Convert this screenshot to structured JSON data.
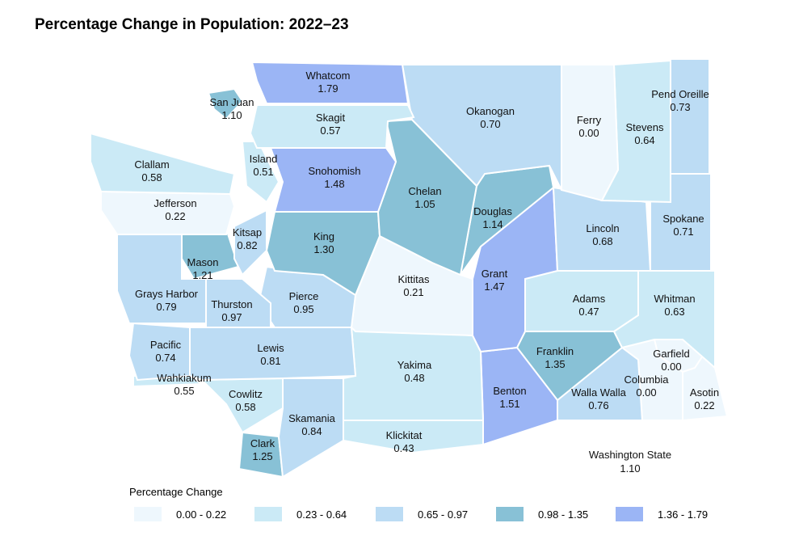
{
  "title": "Percentage Change in Population:  2022–23",
  "state": {
    "label": "Washington State",
    "value": "1.10"
  },
  "legend": {
    "title": "Percentage Change",
    "bins": [
      {
        "label": "0.00 - 0.22",
        "color": "#eef7fd"
      },
      {
        "label": "0.23 - 0.64",
        "color": "#cbeaf6"
      },
      {
        "label": "0.65 - 0.97",
        "color": "#bcdcf4"
      },
      {
        "label": "0.98 - 1.35",
        "color": "#88c1d6"
      },
      {
        "label": "1.36 - 1.79",
        "color": "#9bb5f5"
      }
    ]
  },
  "counties": [
    {
      "name": "Whatcom",
      "value": "1.79",
      "bin": 4
    },
    {
      "name": "San Juan",
      "value": "1.10",
      "bin": 3
    },
    {
      "name": "Skagit",
      "value": "0.57",
      "bin": 1
    },
    {
      "name": "Clallam",
      "value": "0.58",
      "bin": 1
    },
    {
      "name": "Jefferson",
      "value": "0.22",
      "bin": 0
    },
    {
      "name": "Island",
      "value": "0.51",
      "bin": 1
    },
    {
      "name": "Snohomish",
      "value": "1.48",
      "bin": 4
    },
    {
      "name": "Okanogan",
      "value": "0.70",
      "bin": 2
    },
    {
      "name": "Ferry",
      "value": "0.00",
      "bin": 0
    },
    {
      "name": "Stevens",
      "value": "0.64",
      "bin": 1
    },
    {
      "name": "Pend Oreille",
      "value": "0.73",
      "bin": 2
    },
    {
      "name": "Chelan",
      "value": "1.05",
      "bin": 3
    },
    {
      "name": "Douglas",
      "value": "1.14",
      "bin": 3
    },
    {
      "name": "Lincoln",
      "value": "0.68",
      "bin": 2
    },
    {
      "name": "Spokane",
      "value": "0.71",
      "bin": 2
    },
    {
      "name": "Kitsap",
      "value": "0.82",
      "bin": 2
    },
    {
      "name": "Mason",
      "value": "1.21",
      "bin": 3
    },
    {
      "name": "King",
      "value": "1.30",
      "bin": 3
    },
    {
      "name": "Grays Harbor",
      "value": "0.79",
      "bin": 2
    },
    {
      "name": "Thurston",
      "value": "0.97",
      "bin": 2
    },
    {
      "name": "Pierce",
      "value": "0.95",
      "bin": 2
    },
    {
      "name": "Kittitas",
      "value": "0.21",
      "bin": 0
    },
    {
      "name": "Grant",
      "value": "1.47",
      "bin": 4
    },
    {
      "name": "Adams",
      "value": "0.47",
      "bin": 1
    },
    {
      "name": "Whitman",
      "value": "0.63",
      "bin": 1
    },
    {
      "name": "Pacific",
      "value": "0.74",
      "bin": 2
    },
    {
      "name": "Wahkiakum",
      "value": "0.55",
      "bin": 1
    },
    {
      "name": "Lewis",
      "value": "0.81",
      "bin": 2
    },
    {
      "name": "Cowlitz",
      "value": "0.58",
      "bin": 1
    },
    {
      "name": "Skamania",
      "value": "0.84",
      "bin": 2
    },
    {
      "name": "Clark",
      "value": "1.25",
      "bin": 3
    },
    {
      "name": "Yakima",
      "value": "0.48",
      "bin": 1
    },
    {
      "name": "Klickitat",
      "value": "0.43",
      "bin": 1
    },
    {
      "name": "Benton",
      "value": "1.51",
      "bin": 4
    },
    {
      "name": "Franklin",
      "value": "1.35",
      "bin": 3
    },
    {
      "name": "Walla Walla",
      "value": "0.76",
      "bin": 2
    },
    {
      "name": "Columbia",
      "value": "0.00",
      "bin": 0
    },
    {
      "name": "Garfield",
      "value": "0.00",
      "bin": 0
    },
    {
      "name": "Asotin",
      "value": "0.22",
      "bin": 0
    }
  ]
}
